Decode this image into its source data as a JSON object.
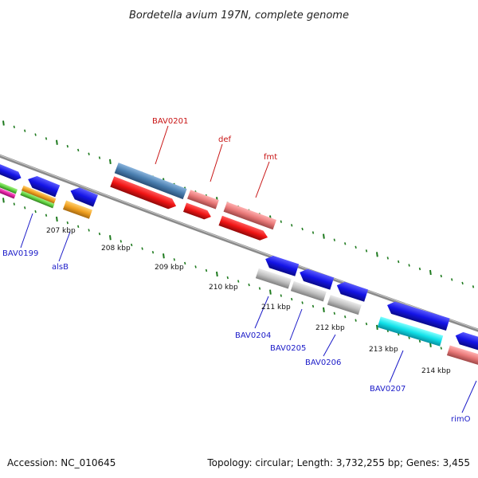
{
  "title": "Bordetella avium 197N, complete genome",
  "footer": {
    "accession": "Accession: NC_010645",
    "topology": "Topology: circular; Length: 3,732,255 bp; Genes: 3,455"
  },
  "kbp_labels": [
    "207 kbp",
    "208 kbp",
    "209 kbp",
    "210 kbp",
    "211 kbp",
    "212 kbp",
    "213 kbp",
    "214 kbp"
  ],
  "gene_labels": [
    {
      "text": "BAV0201",
      "color": "#c81414"
    },
    {
      "text": "def",
      "color": "#c81414"
    },
    {
      "text": "fmt",
      "color": "#c81414"
    },
    {
      "text": "BAV0199",
      "color": "#1a1ac8"
    },
    {
      "text": "alsB",
      "color": "#1a1ac8"
    },
    {
      "text": "BAV0204",
      "color": "#1a1ac8"
    },
    {
      "text": "BAV0205",
      "color": "#1a1ac8"
    },
    {
      "text": "BAV0206",
      "color": "#1a1ac8"
    },
    {
      "text": "BAV0207",
      "color": "#1a1ac8"
    },
    {
      "text": "rimO",
      "color": "#1a1ac8"
    }
  ],
  "colors": {
    "backbone": "#8a8a8a",
    "tick_green": "#1e7a1e",
    "label_blue": "#1a1ac8",
    "label_red": "#c81414",
    "gene_blue": "#1414e6",
    "gene_red": "#f01414",
    "gene_pink": "#e87878",
    "gene_steel": "#4a7fb0",
    "gene_orange": "#f0a020",
    "gene_green": "#60d040",
    "gene_magenta": "#e020a0",
    "gene_gray": "#c0c0c0",
    "gene_cyan": "#10e0e8"
  }
}
